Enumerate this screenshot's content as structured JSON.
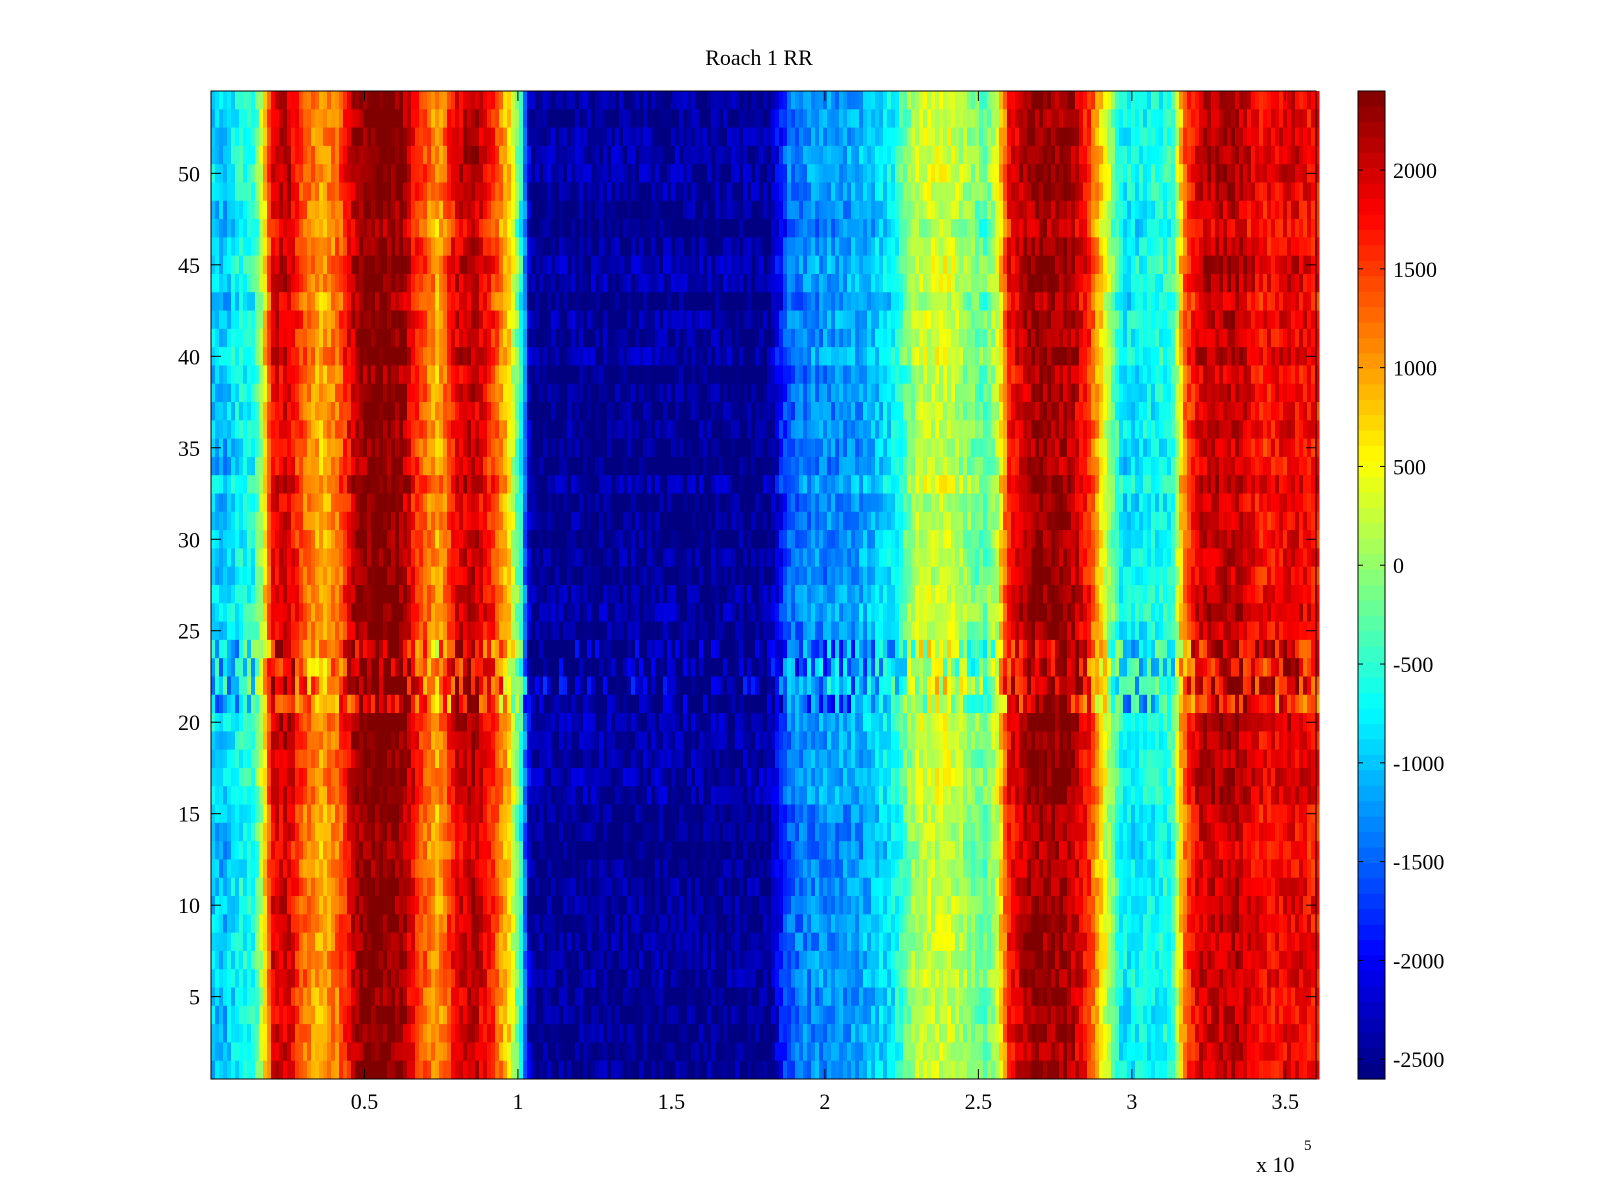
{
  "chart_data": {
    "type": "heatmap",
    "title": "Roach 1 RR",
    "xlabel": "",
    "ylabel": "",
    "x_exponent_label": "x 10",
    "x_exponent_power": "5",
    "xlim": [
      0,
      360000
    ],
    "ylim": [
      0.5,
      54.5
    ],
    "x_ticks": [
      50000,
      100000,
      150000,
      200000,
      250000,
      300000,
      350000
    ],
    "x_tick_labels": [
      "0.5",
      "1",
      "1.5",
      "2",
      "2.5",
      "3",
      "3.5"
    ],
    "y_ticks": [
      5,
      10,
      15,
      20,
      25,
      30,
      35,
      40,
      45,
      50
    ],
    "y_tick_labels": [
      "5",
      "10",
      "15",
      "20",
      "25",
      "30",
      "35",
      "40",
      "45",
      "50"
    ],
    "rows": 54,
    "colormap": "jet",
    "clim": [
      -2600,
      2400
    ],
    "colorbar": {
      "ticks": [
        2000,
        1500,
        1000,
        500,
        0,
        -500,
        -1000,
        -1500,
        -2000,
        -2500
      ],
      "tick_labels": [
        "2000",
        "1500",
        "1000",
        "500",
        "0",
        "-500",
        "-1000",
        "-1500",
        "-2000",
        "-2500"
      ]
    },
    "column_profile": [
      {
        "x": 0,
        "value": -900
      },
      {
        "x": 4000,
        "value": -1100
      },
      {
        "x": 9000,
        "value": -700
      },
      {
        "x": 14000,
        "value": -600
      },
      {
        "x": 17000,
        "value": 400
      },
      {
        "x": 20000,
        "value": 1900
      },
      {
        "x": 25000,
        "value": 2000
      },
      {
        "x": 30000,
        "value": 1300
      },
      {
        "x": 36000,
        "value": 900
      },
      {
        "x": 42000,
        "value": 1300
      },
      {
        "x": 48000,
        "value": 2300
      },
      {
        "x": 55000,
        "value": 2400
      },
      {
        "x": 62000,
        "value": 2300
      },
      {
        "x": 68000,
        "value": 1500
      },
      {
        "x": 74000,
        "value": 900
      },
      {
        "x": 80000,
        "value": 1900
      },
      {
        "x": 86000,
        "value": 2100
      },
      {
        "x": 92000,
        "value": 1500
      },
      {
        "x": 97000,
        "value": 700
      },
      {
        "x": 101000,
        "value": -600
      },
      {
        "x": 104000,
        "value": -2500
      },
      {
        "x": 150000,
        "value": -2500
      },
      {
        "x": 182000,
        "value": -2500
      },
      {
        "x": 188000,
        "value": -1500
      },
      {
        "x": 196000,
        "value": -1300
      },
      {
        "x": 210000,
        "value": -1200
      },
      {
        "x": 222000,
        "value": -800
      },
      {
        "x": 230000,
        "value": 200
      },
      {
        "x": 240000,
        "value": 300
      },
      {
        "x": 252000,
        "value": -300
      },
      {
        "x": 256000,
        "value": 200
      },
      {
        "x": 260000,
        "value": 1700
      },
      {
        "x": 268000,
        "value": 2300
      },
      {
        "x": 280000,
        "value": 2200
      },
      {
        "x": 286000,
        "value": 1600
      },
      {
        "x": 291000,
        "value": 400
      },
      {
        "x": 297000,
        "value": -800
      },
      {
        "x": 306000,
        "value": -700
      },
      {
        "x": 313000,
        "value": -600
      },
      {
        "x": 317000,
        "value": 1200
      },
      {
        "x": 322000,
        "value": 2000
      },
      {
        "x": 334000,
        "value": 2100
      },
      {
        "x": 343000,
        "value": 1700
      },
      {
        "x": 352000,
        "value": 1900
      },
      {
        "x": 360000,
        "value": 1700
      }
    ]
  }
}
